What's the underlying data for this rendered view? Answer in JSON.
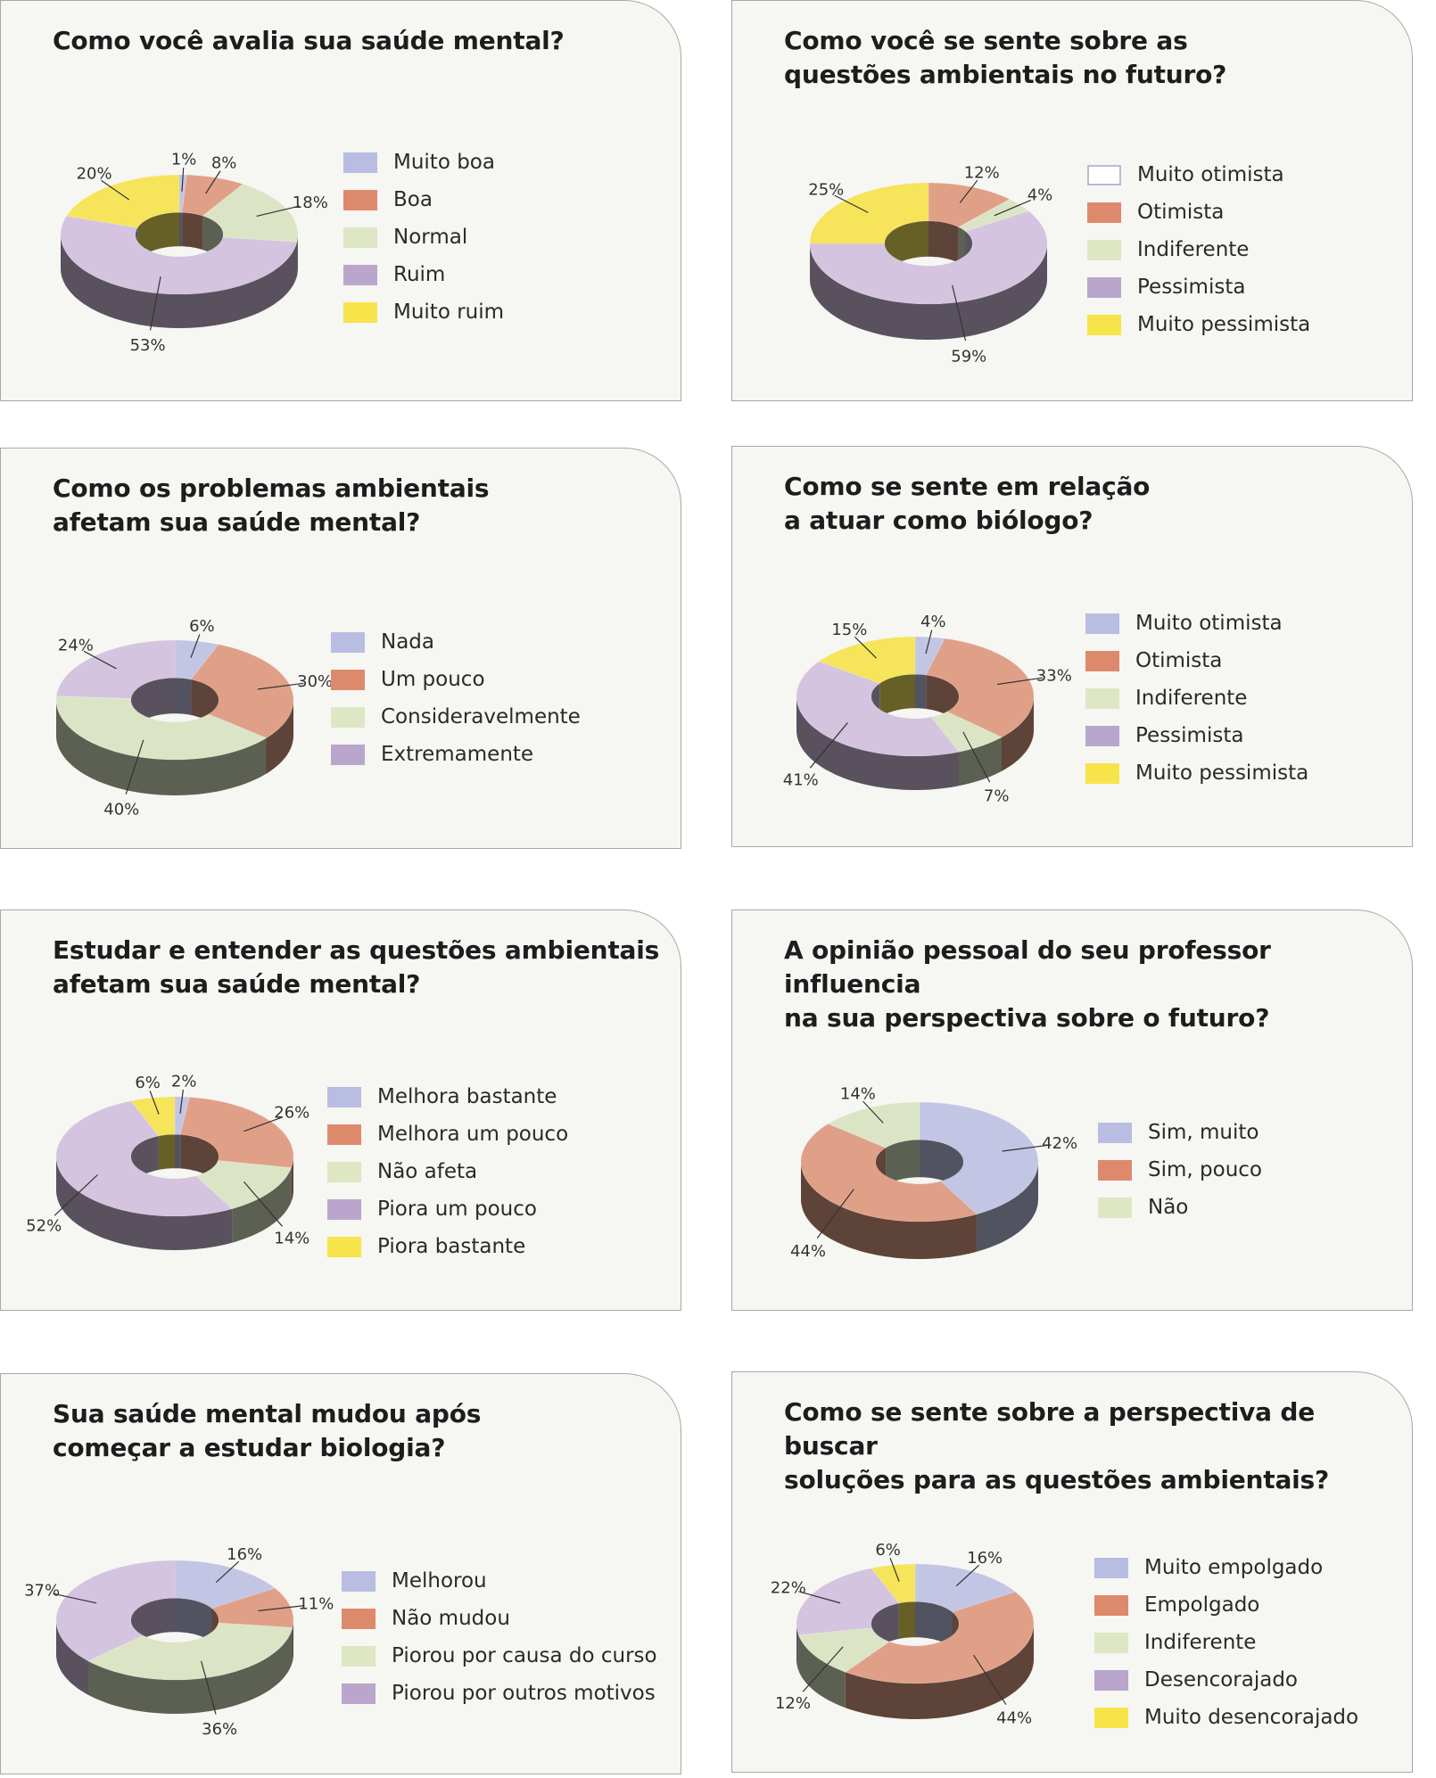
{
  "charts": [
    {
      "title": "Como você avalia sua saúde mental?",
      "legend": [
        "Muito boa",
        "Boa",
        "Normal",
        "Ruim",
        "Muito ruim"
      ]
    },
    {
      "title": "Como você se sente sobre as\nquestões ambientais no futuro?",
      "legend": [
        "Muito otimista",
        "Otimista",
        "Indiferente",
        "Pessimista",
        "Muito pessimista"
      ]
    },
    {
      "title": "Como os problemas ambientais\nafetam sua saúde mental?",
      "legend": [
        "Nada",
        "Um pouco",
        "Consideravelmente",
        "Extremamente"
      ]
    },
    {
      "title": "Como se sente em relação\na atuar como biólogo?",
      "legend": [
        "Muito otimista",
        "Otimista",
        "Indiferente",
        "Pessimista",
        "Muito pessimista"
      ]
    },
    {
      "title": "Estudar e entender as questões ambientais\nafetam sua saúde mental?",
      "legend": [
        "Melhora bastante",
        "Melhora um pouco",
        "Não afeta",
        "Piora um pouco",
        "Piora bastante"
      ]
    },
    {
      "title": "A opinião pessoal do seu professor influencia\nna sua perspectiva sobre o futuro?",
      "legend": [
        "Sim, muito",
        "Sim, pouco",
        "Não"
      ]
    },
    {
      "title": "Sua saúde mental mudou após\ncomeçar a estudar biologia?",
      "legend": [
        "Melhorou",
        "Não mudou",
        "Piorou por causa do curso",
        "Piorou por outros motivos"
      ]
    },
    {
      "title": "Como se sente sobre a perspectiva de buscar\nsoluções para as questões ambientais?",
      "legend": [
        "Muito empolgado",
        "Empolgado",
        "Indiferente",
        "Desencorajado",
        "Muito desencorajado"
      ]
    }
  ],
  "chart_data": [
    {
      "type": "pie",
      "title": "Como você avalia sua saúde mental?",
      "categories": [
        "Muito boa",
        "Boa",
        "Normal",
        "Ruim",
        "Muito ruim"
      ],
      "values": [
        1,
        8,
        18,
        53,
        20
      ],
      "labels": [
        "1%",
        "8%",
        "18%",
        "53%",
        "20%"
      ],
      "colors": [
        "#c3c5e4",
        "#e0a088",
        "#dbe5c6",
        "#d4c4df",
        "#f6e45a"
      ],
      "legend_colors": [
        "#b9bde1",
        "#dd8a6c",
        "#dde7c4",
        "#baa6cc",
        "#f7e44a"
      ]
    },
    {
      "type": "pie",
      "title": "Como você se sente sobre as questões ambientais no futuro?",
      "categories": [
        "Muito otimista",
        "Otimista",
        "Indiferente",
        "Pessimista",
        "Muito pessimista"
      ],
      "values": [
        0,
        12,
        4,
        59,
        25
      ],
      "labels": [
        "",
        "12%",
        "4%",
        "59%",
        "25%"
      ],
      "colors": [
        "#c3c5e4",
        "#e0a088",
        "#dbe5c6",
        "#d4c4df",
        "#f6e45a"
      ],
      "legend_colors": [
        "#ffffff",
        "#dd8a6c",
        "#dde7c4",
        "#baa6cc",
        "#f7e44a"
      ]
    },
    {
      "type": "pie",
      "title": "Como os problemas ambientais afetam sua saúde mental?",
      "categories": [
        "Nada",
        "Um pouco",
        "Consideravelmente",
        "Extremamente"
      ],
      "values": [
        6,
        30,
        40,
        24
      ],
      "labels": [
        "6%",
        "30%",
        "40%",
        "24%"
      ],
      "colors": [
        "#c3c5e4",
        "#e0a088",
        "#dbe5c6",
        "#d4c4df"
      ],
      "legend_colors": [
        "#b9bde1",
        "#dd8a6c",
        "#dde7c4",
        "#baa6cc"
      ]
    },
    {
      "type": "pie",
      "title": "Como se sente em relação a atuar como biólogo?",
      "categories": [
        "Muito otimista",
        "Otimista",
        "Indiferente",
        "Pessimista",
        "Muito pessimista"
      ],
      "values": [
        4,
        33,
        7,
        41,
        15
      ],
      "labels": [
        "4%",
        "33%",
        "7%",
        "41%",
        "15%"
      ],
      "colors": [
        "#c3c5e4",
        "#e0a088",
        "#dbe5c6",
        "#d4c4df",
        "#f6e45a"
      ],
      "legend_colors": [
        "#b9bde1",
        "#dd8a6c",
        "#dde7c4",
        "#baa6cc",
        "#f7e44a"
      ]
    },
    {
      "type": "pie",
      "title": "Estudar e entender as questões ambientais afetam sua saúde mental?",
      "categories": [
        "Melhora bastante",
        "Melhora um pouco",
        "Não afeta",
        "Piora um pouco",
        "Piora bastante"
      ],
      "values": [
        2,
        26,
        14,
        52,
        6
      ],
      "labels": [
        "2%",
        "26%",
        "14%",
        "52%",
        "6%"
      ],
      "colors": [
        "#c3c5e4",
        "#e0a088",
        "#dbe5c6",
        "#d4c4df",
        "#f6e45a"
      ],
      "legend_colors": [
        "#b9bde1",
        "#dd8a6c",
        "#dde7c4",
        "#baa6cc",
        "#f7e44a"
      ]
    },
    {
      "type": "pie",
      "title": "A opinião pessoal do seu professor influencia na sua perspectiva sobre o futuro?",
      "categories": [
        "Sim, muito",
        "Sim, pouco",
        "Não"
      ],
      "values": [
        42,
        44,
        14
      ],
      "labels": [
        "42%",
        "44%",
        "14%"
      ],
      "colors": [
        "#c3c5e4",
        "#e0a088",
        "#dbe5c6"
      ],
      "legend_colors": [
        "#b9bde1",
        "#dd8a6c",
        "#dde7c4"
      ]
    },
    {
      "type": "pie",
      "title": "Sua saúde mental mudou após começar a estudar biologia?",
      "categories": [
        "Melhorou",
        "Não mudou",
        "Piorou por causa do curso",
        "Piorou por outros motivos"
      ],
      "values": [
        16,
        11,
        36,
        37
      ],
      "labels": [
        "16%",
        "11%",
        "36%",
        "37%"
      ],
      "colors": [
        "#c3c5e4",
        "#e0a088",
        "#dbe5c6",
        "#d4c4df"
      ],
      "legend_colors": [
        "#b9bde1",
        "#dd8a6c",
        "#dde7c4",
        "#baa6cc"
      ]
    },
    {
      "type": "pie",
      "title": "Como se sente sobre a perspectiva de buscar soluções para as questões ambientais?",
      "categories": [
        "Muito empolgado",
        "Empolgado",
        "Indiferente",
        "Desencorajado",
        "Muito desencorajado"
      ],
      "values": [
        16,
        44,
        12,
        22,
        6
      ],
      "labels": [
        "16%",
        "44%",
        "12%",
        "22%",
        "6%"
      ],
      "colors": [
        "#c3c5e4",
        "#e0a088",
        "#dbe5c6",
        "#d4c4df",
        "#f6e45a"
      ],
      "legend_colors": [
        "#b9bde1",
        "#dd8a6c",
        "#dde7c4",
        "#baa6cc",
        "#f7e44a"
      ]
    }
  ]
}
